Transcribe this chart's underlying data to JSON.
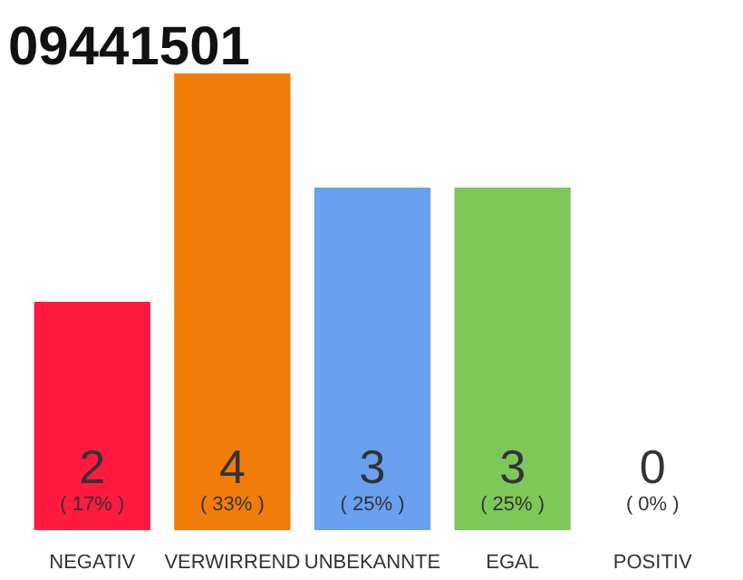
{
  "chart_data": {
    "type": "bar",
    "title": "09441501",
    "categories": [
      "NEGATIV",
      "VERWIRREND",
      "UNBEKANNTE",
      "EGAL",
      "POSITIV"
    ],
    "values": [
      2,
      4,
      3,
      3,
      0
    ],
    "colors": [
      "#ff1a40",
      "#f07d0a",
      "#6aa0f0",
      "#7ec85a",
      "#9e9e9e"
    ],
    "data_labels": true,
    "annotations": [
      "( 17% )",
      "( 33% )",
      "( 25% )",
      "( 25% )",
      "( 0% )"
    ]
  }
}
